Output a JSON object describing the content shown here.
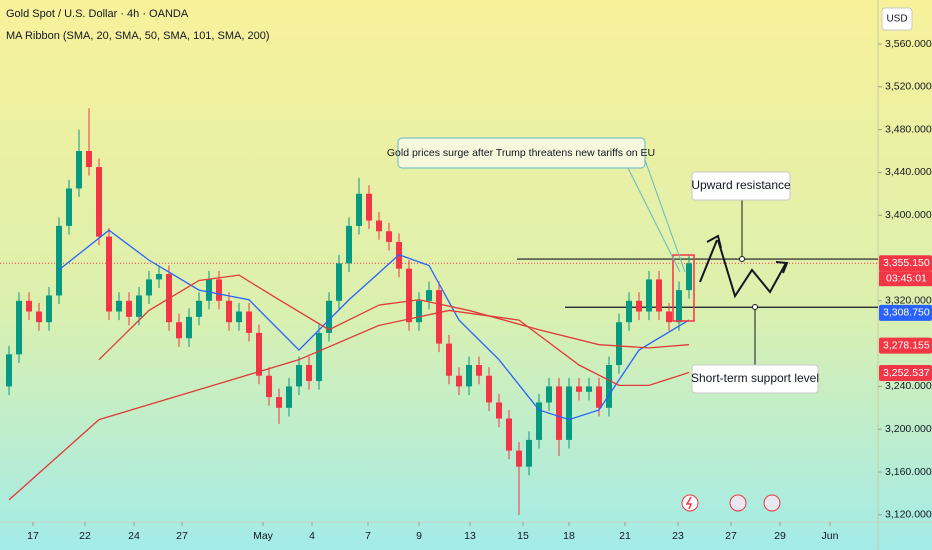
{
  "chart_data": {
    "type": "candlestick",
    "title": "Gold Spot / U.S. Dollar · 4h · OANDA",
    "subtitle": "MA Ribbon (SMA, 20, SMA, 50, SMA, 101, SMA, 200)",
    "currency": "USD",
    "up_color": "#089981",
    "down_color": "#f23645",
    "ylim": [
      3113.3,
      3601.1
    ],
    "yticks": [
      {
        "value": 3120,
        "label": "3,120.000"
      },
      {
        "value": 3160,
        "label": "3,160.000"
      },
      {
        "value": 3200,
        "label": "3,200.000"
      },
      {
        "value": 3240,
        "label": "3,240.000"
      },
      {
        "value": 3320,
        "label": "3,320.000"
      },
      {
        "value": 3400,
        "label": "3,400.000"
      },
      {
        "value": 3440,
        "label": "3,440.000"
      },
      {
        "value": 3480,
        "label": "3,480.000"
      },
      {
        "value": 3520,
        "label": "3,520.000"
      },
      {
        "value": 3560,
        "label": "3,560.000"
      }
    ],
    "xlim": [
      -0.9,
      86.9
    ],
    "xticks": [
      {
        "value": 2.4,
        "label": "17"
      },
      {
        "value": 7.6,
        "label": "22"
      },
      {
        "value": 12.5,
        "label": "24"
      },
      {
        "value": 17.3,
        "label": "27"
      },
      {
        "value": 25.4,
        "label": "May"
      },
      {
        "value": 30.3,
        "label": "4"
      },
      {
        "value": 35.9,
        "label": "7"
      },
      {
        "value": 41,
        "label": "9"
      },
      {
        "value": 46.1,
        "label": "13"
      },
      {
        "value": 51.4,
        "label": "15"
      },
      {
        "value": 56,
        "label": "18"
      },
      {
        "value": 61.6,
        "label": "21"
      },
      {
        "value": 66.9,
        "label": "23"
      },
      {
        "value": 72.2,
        "label": "27"
      },
      {
        "value": 77.1,
        "label": "29"
      },
      {
        "value": 82.1,
        "label": "Jun"
      }
    ],
    "candles": {
      "open": [
        3240,
        3270,
        3320,
        3310,
        3300,
        3325,
        3390,
        3425,
        3460,
        3445,
        3380,
        3310,
        3320,
        3305,
        3325,
        3340,
        3345,
        3300,
        3285,
        3305,
        3320,
        3340,
        3320,
        3300,
        3310,
        3290,
        3250,
        3230,
        3220,
        3240,
        3260,
        3245,
        3290,
        3320,
        3355,
        3390,
        3420,
        3395,
        3385,
        3375,
        3350,
        3300,
        3320,
        3330,
        3280,
        3250,
        3240,
        3260,
        3250,
        3225,
        3210,
        3180,
        3165,
        3190,
        3225,
        3240,
        3190,
        3240,
        3235,
        3240,
        3220,
        3260,
        3300,
        3320,
        3310,
        3340,
        3310,
        3300,
        3330
      ],
      "high": [
        3278,
        3328,
        3328,
        3318,
        3333,
        3398,
        3433,
        3480,
        3500,
        3453,
        3388,
        3328,
        3328,
        3333,
        3348,
        3353,
        3353,
        3308,
        3313,
        3328,
        3348,
        3348,
        3328,
        3318,
        3318,
        3298,
        3258,
        3238,
        3248,
        3268,
        3268,
        3298,
        3328,
        3363,
        3398,
        3435,
        3428,
        3403,
        3393,
        3383,
        3358,
        3328,
        3338,
        3338,
        3288,
        3258,
        3268,
        3268,
        3258,
        3233,
        3218,
        3188,
        3198,
        3233,
        3248,
        3248,
        3248,
        3248,
        3248,
        3248,
        3268,
        3308,
        3328,
        3328,
        3348,
        3348,
        3318,
        3338,
        3363
      ],
      "low": [
        3232,
        3262,
        3302,
        3292,
        3292,
        3317,
        3382,
        3417,
        3437,
        3372,
        3302,
        3302,
        3297,
        3297,
        3317,
        3332,
        3292,
        3277,
        3277,
        3297,
        3312,
        3312,
        3292,
        3292,
        3282,
        3242,
        3222,
        3205,
        3212,
        3232,
        3237,
        3237,
        3282,
        3312,
        3347,
        3382,
        3387,
        3377,
        3367,
        3342,
        3292,
        3292,
        3312,
        3272,
        3242,
        3232,
        3232,
        3242,
        3217,
        3202,
        3172,
        3120,
        3157,
        3182,
        3217,
        3175,
        3182,
        3227,
        3227,
        3212,
        3212,
        3252,
        3292,
        3302,
        3302,
        3302,
        3292,
        3292,
        3322
      ],
      "close": [
        3270,
        3320,
        3310,
        3300,
        3325,
        3390,
        3425,
        3460,
        3445,
        3380,
        3310,
        3320,
        3305,
        3325,
        3340,
        3345,
        3300,
        3285,
        3305,
        3320,
        3340,
        3320,
        3300,
        3310,
        3290,
        3250,
        3230,
        3220,
        3240,
        3260,
        3245,
        3290,
        3320,
        3355,
        3390,
        3420,
        3395,
        3385,
        3375,
        3350,
        3300,
        3320,
        3330,
        3280,
        3250,
        3240,
        3260,
        3250,
        3225,
        3210,
        3180,
        3165,
        3190,
        3225,
        3240,
        3190,
        3240,
        3235,
        3240,
        3220,
        3260,
        3300,
        3320,
        3310,
        3340,
        3310,
        3300,
        3330,
        3355
      ]
    },
    "moving_averages": [
      {
        "color": "#2962ff",
        "x": [
          5,
          10,
          14,
          19,
          24,
          29,
          34,
          39,
          42,
          45,
          49,
          53,
          56,
          59,
          63,
          68
        ],
        "values": [
          3349,
          3386,
          3358,
          3330,
          3321,
          3274,
          3321,
          3363,
          3353,
          3302,
          3265,
          3218,
          3209,
          3218,
          3274,
          3302
        ]
      },
      {
        "color": "#e03a3a",
        "x": [
          9,
          14,
          19,
          23,
          27,
          32,
          37,
          41,
          46,
          53,
          59,
          64,
          68
        ],
        "values": [
          3265,
          3311,
          3339,
          3344,
          3321,
          3293,
          3316,
          3321,
          3311,
          3293,
          3279,
          3276,
          3279
        ]
      },
      {
        "color": "#e03a3a",
        "x": [
          0,
          9,
          19,
          29,
          37,
          44,
          51,
          57,
          61,
          64,
          68
        ],
        "values": [
          3134,
          3209,
          3237,
          3265,
          3297,
          3311,
          3302,
          3260,
          3241,
          3241,
          3253
        ]
      }
    ],
    "price_labels": [
      {
        "value": 3355.15,
        "label": "3,355.150",
        "color": "#f23645"
      },
      {
        "value": 3308.75,
        "label": "3,308.750",
        "color": "#2962ff"
      },
      {
        "value": 3278.155,
        "label": "3,278.155",
        "color": "#f23645"
      },
      {
        "value": 3252.537,
        "label": "3,252.537",
        "color": "#f23645"
      }
    ],
    "countdown": "03:45:01",
    "levels": [
      {
        "value": 3359,
        "label": "Upward resistance"
      },
      {
        "value": 3314,
        "label": "Short-term support level"
      }
    ],
    "annotation": "Gold prices surge after Trump threatens new tariffs on EU"
  }
}
